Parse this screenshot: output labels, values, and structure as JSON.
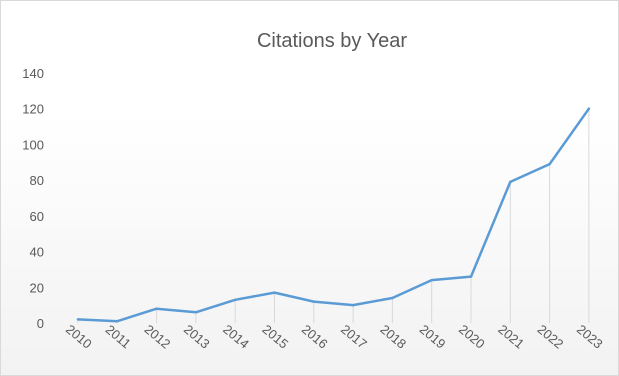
{
  "chart_data": {
    "type": "line",
    "title": "Citations by Year",
    "xlabel": "",
    "ylabel": "",
    "categories": [
      "2010",
      "2011",
      "2012",
      "2013",
      "2014",
      "2015",
      "2016",
      "2017",
      "2018",
      "2019",
      "2020",
      "2021",
      "2022",
      "2023"
    ],
    "values": [
      2,
      1,
      8,
      6,
      13,
      17,
      12,
      10,
      14,
      24,
      26,
      79,
      89,
      120
    ],
    "ylim": [
      0,
      140
    ],
    "y_ticks": [
      "0",
      "20",
      "40",
      "60",
      "80",
      "100",
      "120",
      "140"
    ],
    "grid": "vertical drop lines",
    "legend": "none",
    "line_color": "#5b9bd5",
    "drop_line_color": "#d9d9d9"
  }
}
